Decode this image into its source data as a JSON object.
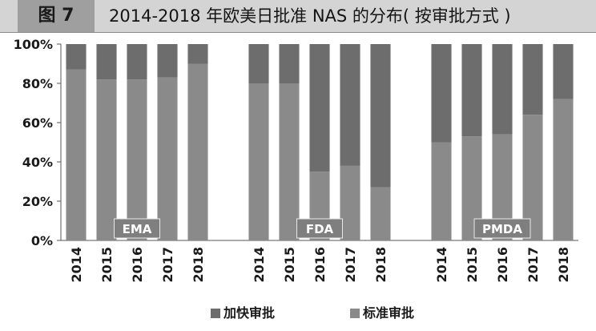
{
  "figure": {
    "label": "图 7",
    "title": "2014-2018 年欧美日批准 NAS 的分布( 按审批方式 )"
  },
  "chart_data": {
    "type": "bar",
    "stacked": true,
    "normalized": true,
    "y_ticks": [
      "0%",
      "20%",
      "40%",
      "60%",
      "80%",
      "100%"
    ],
    "ylim": [
      0,
      100
    ],
    "groups": [
      {
        "label": "EMA",
        "categories": [
          "2014",
          "2015",
          "2016",
          "2017",
          "2018"
        ]
      },
      {
        "label": "FDA",
        "categories": [
          "2014",
          "2015",
          "2016",
          "2017",
          "2018"
        ]
      },
      {
        "label": "PMDA",
        "categories": [
          "2014",
          "2015",
          "2016",
          "2017",
          "2018"
        ]
      }
    ],
    "series": [
      {
        "name": "标准审批",
        "color": "#8a8a8a",
        "values": [
          87,
          82,
          82,
          83,
          90,
          80,
          80,
          35,
          38,
          27,
          50,
          53,
          54,
          64,
          72
        ]
      },
      {
        "name": "加快审批",
        "color": "#6d6d6d",
        "values": [
          13,
          18,
          18,
          17,
          10,
          20,
          20,
          65,
          62,
          73,
          50,
          47,
          46,
          36,
          28
        ]
      }
    ],
    "legend_position": "bottom",
    "grid": false
  }
}
